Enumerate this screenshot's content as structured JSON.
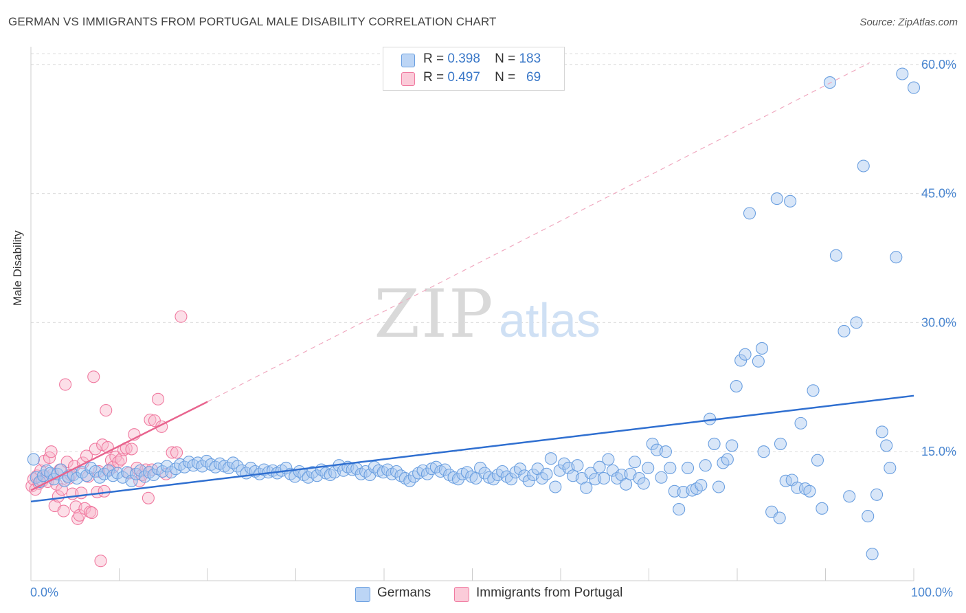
{
  "title": "GERMAN VS IMMIGRANTS FROM PORTUGAL MALE DISABILITY CORRELATION CHART",
  "source": "Source: ZipAtlas.com",
  "legend": {
    "rows": [
      {
        "r_label": "R =",
        "r_value": "0.398",
        "n_label": "N =",
        "n_value": "183",
        "color": "#a8c8f0"
      },
      {
        "r_label": "R =",
        "r_value": "0.497",
        "n_label": "N =",
        "n_value": "69",
        "color": "#f8b8cc"
      }
    ]
  },
  "bottom_legend": [
    {
      "label": "Germans",
      "color": "#a8c8f0"
    },
    {
      "label": "Immigrants from Portugal",
      "color": "#f8b8cc"
    }
  ],
  "x_axis": {
    "min_label": "0.0%",
    "max_label": "100.0%"
  },
  "watermark": {
    "part1": "ZIP",
    "part2": "atlas"
  },
  "chart_data": {
    "type": "scatter",
    "title": "GERMAN VS IMMIGRANTS FROM PORTUGAL MALE DISABILITY CORRELATION CHART",
    "xlabel": "",
    "ylabel": "Male Disability",
    "xlim": [
      0,
      100
    ],
    "ylim": [
      0,
      61.5
    ],
    "y_ticks": [
      15,
      30,
      45,
      60
    ],
    "y_tick_labels": [
      "15.0%",
      "30.0%",
      "45.0%",
      "60.0%"
    ],
    "x_tick_labels": [
      "0.0%",
      "100.0%"
    ],
    "grid": "horizontal dashed",
    "legend_position": "top-center",
    "series": [
      {
        "name": "Germans",
        "color": "#6a9fe0",
        "r": 0.398,
        "n": 183,
        "trend": {
          "x": [
            0,
            100
          ],
          "y": [
            9.2,
            21.5
          ],
          "style": "solid",
          "color": "#2f6fd0"
        },
        "points": [
          [
            0.3,
            14.1
          ],
          [
            0.6,
            12.0
          ],
          [
            1.0,
            11.5
          ],
          [
            1.4,
            12.2
          ],
          [
            1.8,
            12.8
          ],
          [
            2.2,
            12.5
          ],
          [
            2.6,
            11.8
          ],
          [
            3.0,
            12.4
          ],
          [
            3.4,
            12.9
          ],
          [
            3.8,
            11.6
          ],
          [
            4.2,
            12.1
          ],
          [
            4.8,
            12.3
          ],
          [
            5.2,
            11.9
          ],
          [
            5.8,
            12.6
          ],
          [
            6.3,
            12.2
          ],
          [
            6.8,
            13.1
          ],
          [
            7.3,
            12.7
          ],
          [
            7.8,
            12.0
          ],
          [
            8.3,
            12.4
          ],
          [
            8.8,
            12.8
          ],
          [
            9.3,
            12.2
          ],
          [
            9.8,
            12.5
          ],
          [
            10.4,
            12.0
          ],
          [
            10.9,
            12.6
          ],
          [
            11.4,
            11.6
          ],
          [
            11.9,
            12.4
          ],
          [
            12.4,
            12.8
          ],
          [
            12.9,
            12.1
          ],
          [
            13.4,
            12.6
          ],
          [
            13.9,
            12.3
          ],
          [
            14.4,
            13.0
          ],
          [
            14.9,
            12.7
          ],
          [
            15.4,
            13.3
          ],
          [
            15.9,
            12.6
          ],
          [
            16.4,
            13.0
          ],
          [
            16.9,
            13.5
          ],
          [
            17.4,
            13.2
          ],
          [
            17.9,
            13.8
          ],
          [
            18.4,
            13.4
          ],
          [
            18.9,
            13.7
          ],
          [
            19.4,
            13.3
          ],
          [
            19.9,
            13.9
          ],
          [
            20.4,
            13.5
          ],
          [
            20.9,
            13.2
          ],
          [
            21.4,
            13.6
          ],
          [
            21.9,
            13.3
          ],
          [
            22.4,
            13.1
          ],
          [
            22.9,
            13.7
          ],
          [
            23.4,
            13.3
          ],
          [
            23.9,
            12.8
          ],
          [
            24.4,
            12.5
          ],
          [
            24.9,
            13.1
          ],
          [
            25.4,
            12.7
          ],
          [
            25.9,
            12.4
          ],
          [
            26.4,
            12.9
          ],
          [
            26.9,
            12.6
          ],
          [
            27.4,
            12.8
          ],
          [
            27.9,
            12.5
          ],
          [
            28.4,
            12.8
          ],
          [
            28.9,
            13.1
          ],
          [
            29.4,
            12.4
          ],
          [
            29.9,
            12.1
          ],
          [
            30.4,
            12.7
          ],
          [
            30.9,
            12.3
          ],
          [
            31.4,
            12.0
          ],
          [
            31.9,
            12.6
          ],
          [
            32.4,
            12.2
          ],
          [
            32.9,
            12.9
          ],
          [
            33.4,
            12.5
          ],
          [
            33.9,
            12.3
          ],
          [
            34.4,
            12.6
          ],
          [
            34.9,
            13.4
          ],
          [
            35.4,
            12.8
          ],
          [
            35.9,
            13.2
          ],
          [
            36.4,
            12.9
          ],
          [
            36.9,
            13.0
          ],
          [
            37.4,
            12.4
          ],
          [
            37.9,
            12.7
          ],
          [
            38.4,
            12.3
          ],
          [
            38.9,
            13.2
          ],
          [
            39.4,
            12.8
          ],
          [
            39.9,
            12.6
          ],
          [
            40.4,
            12.9
          ],
          [
            40.9,
            12.4
          ],
          [
            41.4,
            12.7
          ],
          [
            41.9,
            12.2
          ],
          [
            42.4,
            11.9
          ],
          [
            42.9,
            11.6
          ],
          [
            43.4,
            12.1
          ],
          [
            43.9,
            12.5
          ],
          [
            44.4,
            12.8
          ],
          [
            44.9,
            12.4
          ],
          [
            45.4,
            13.0
          ],
          [
            45.9,
            13.2
          ],
          [
            46.4,
            12.7
          ],
          [
            46.9,
            12.9
          ],
          [
            47.4,
            12.3
          ],
          [
            47.9,
            12.0
          ],
          [
            48.4,
            11.8
          ],
          [
            48.9,
            12.4
          ],
          [
            49.4,
            12.6
          ],
          [
            49.9,
            12.1
          ],
          [
            50.4,
            11.9
          ],
          [
            50.9,
            13.1
          ],
          [
            51.4,
            12.5
          ],
          [
            51.9,
            12.0
          ],
          [
            52.4,
            11.8
          ],
          [
            52.9,
            12.3
          ],
          [
            53.4,
            12.7
          ],
          [
            53.9,
            12.1
          ],
          [
            54.4,
            11.8
          ],
          [
            54.9,
            12.6
          ],
          [
            55.4,
            13.0
          ],
          [
            55.9,
            12.2
          ],
          [
            56.4,
            11.6
          ],
          [
            56.9,
            12.3
          ],
          [
            57.4,
            13.0
          ],
          [
            57.9,
            11.9
          ],
          [
            58.4,
            12.4
          ],
          [
            58.9,
            14.2
          ],
          [
            59.4,
            10.9
          ],
          [
            59.9,
            12.8
          ],
          [
            60.4,
            13.6
          ],
          [
            60.9,
            13.1
          ],
          [
            61.4,
            12.2
          ],
          [
            61.9,
            13.4
          ],
          [
            62.4,
            11.9
          ],
          [
            62.9,
            10.8
          ],
          [
            63.4,
            12.5
          ],
          [
            63.9,
            11.8
          ],
          [
            64.4,
            13.2
          ],
          [
            64.9,
            11.9
          ],
          [
            65.4,
            14.1
          ],
          [
            65.9,
            12.8
          ],
          [
            66.4,
            11.9
          ],
          [
            66.9,
            12.3
          ],
          [
            67.4,
            11.2
          ],
          [
            67.9,
            12.4
          ],
          [
            68.4,
            13.8
          ],
          [
            68.9,
            11.9
          ],
          [
            69.4,
            11.3
          ],
          [
            69.9,
            13.1
          ],
          [
            70.4,
            15.9
          ],
          [
            70.9,
            15.2
          ],
          [
            71.4,
            12.0
          ],
          [
            71.9,
            15.0
          ],
          [
            72.4,
            13.1
          ],
          [
            72.9,
            10.4
          ],
          [
            73.4,
            8.3
          ],
          [
            73.9,
            10.3
          ],
          [
            74.4,
            13.1
          ],
          [
            74.9,
            10.5
          ],
          [
            75.4,
            10.7
          ],
          [
            75.9,
            11.1
          ],
          [
            76.4,
            13.4
          ],
          [
            76.9,
            18.8
          ],
          [
            77.4,
            15.9
          ],
          [
            77.9,
            10.9
          ],
          [
            78.4,
            13.7
          ],
          [
            78.9,
            14.1
          ],
          [
            79.4,
            15.7
          ],
          [
            79.9,
            22.6
          ],
          [
            80.4,
            25.6
          ],
          [
            80.9,
            26.3
          ],
          [
            81.4,
            42.7
          ],
          [
            82.4,
            25.5
          ],
          [
            82.8,
            27.0
          ],
          [
            83.0,
            15.0
          ],
          [
            83.9,
            8.0
          ],
          [
            84.5,
            44.4
          ],
          [
            84.8,
            7.3
          ],
          [
            84.9,
            15.9
          ],
          [
            85.5,
            11.6
          ],
          [
            86.0,
            44.1
          ],
          [
            86.2,
            11.7
          ],
          [
            86.8,
            10.8
          ],
          [
            87.2,
            18.3
          ],
          [
            87.7,
            10.7
          ],
          [
            88.2,
            10.4
          ],
          [
            88.6,
            22.1
          ],
          [
            89.1,
            14.0
          ],
          [
            89.6,
            8.4
          ],
          [
            90.5,
            57.9
          ],
          [
            91.2,
            37.8
          ],
          [
            92.1,
            29.0
          ],
          [
            92.7,
            9.8
          ],
          [
            93.5,
            30.0
          ],
          [
            94.3,
            48.2
          ],
          [
            94.8,
            7.5
          ],
          [
            95.3,
            3.1
          ],
          [
            95.8,
            10.0
          ],
          [
            96.4,
            17.3
          ],
          [
            96.9,
            15.7
          ],
          [
            97.3,
            13.1
          ],
          [
            98.0,
            37.6
          ],
          [
            98.7,
            58.9
          ],
          [
            100.0,
            57.3
          ]
        ]
      },
      {
        "name": "Immigrants from Portugal",
        "color": "#f07aa0",
        "r": 0.497,
        "n": 69,
        "trend": {
          "x": [
            0,
            20
          ],
          "y": [
            10.5,
            20.8
          ],
          "style": "solid",
          "color": "#e8648e"
        },
        "trend_extended": {
          "x": [
            20,
            95
          ],
          "y": [
            20.8,
            60.2
          ],
          "style": "dashed",
          "color": "#f0a8bf"
        },
        "points": [
          [
            0.1,
            11.0
          ],
          [
            0.3,
            11.8
          ],
          [
            0.5,
            10.6
          ],
          [
            0.7,
            12.2
          ],
          [
            0.9,
            11.3
          ],
          [
            1.1,
            12.8
          ],
          [
            1.3,
            11.6
          ],
          [
            1.5,
            13.9
          ],
          [
            1.7,
            12.1
          ],
          [
            1.9,
            11.5
          ],
          [
            2.1,
            14.3
          ],
          [
            2.3,
            15.0
          ],
          [
            2.5,
            12.4
          ],
          [
            2.7,
            8.7
          ],
          [
            2.9,
            11.2
          ],
          [
            3.1,
            9.8
          ],
          [
            3.3,
            12.9
          ],
          [
            3.5,
            10.6
          ],
          [
            3.7,
            8.1
          ],
          [
            3.9,
            22.8
          ],
          [
            4.1,
            13.8
          ],
          [
            4.3,
            11.9
          ],
          [
            4.5,
            12.3
          ],
          [
            4.7,
            10.1
          ],
          [
            4.9,
            13.3
          ],
          [
            5.1,
            8.6
          ],
          [
            5.3,
            7.2
          ],
          [
            5.5,
            7.6
          ],
          [
            5.7,
            10.2
          ],
          [
            5.9,
            13.7
          ],
          [
            6.1,
            8.4
          ],
          [
            6.3,
            14.5
          ],
          [
            6.5,
            12.1
          ],
          [
            6.7,
            8.0
          ],
          [
            6.9,
            7.9
          ],
          [
            7.1,
            23.7
          ],
          [
            7.3,
            15.3
          ],
          [
            7.5,
            10.3
          ],
          [
            7.7,
            12.7
          ],
          [
            7.9,
            2.3
          ],
          [
            8.1,
            15.8
          ],
          [
            8.3,
            10.4
          ],
          [
            8.5,
            19.8
          ],
          [
            8.7,
            15.5
          ],
          [
            8.9,
            12.9
          ],
          [
            9.1,
            14.0
          ],
          [
            9.3,
            13.2
          ],
          [
            9.6,
            14.4
          ],
          [
            9.9,
            13.8
          ],
          [
            10.2,
            14.1
          ],
          [
            10.5,
            15.2
          ],
          [
            10.8,
            15.4
          ],
          [
            11.1,
            12.5
          ],
          [
            11.4,
            15.3
          ],
          [
            11.7,
            17.0
          ],
          [
            12.0,
            13.1
          ],
          [
            12.3,
            11.6
          ],
          [
            12.6,
            12.3
          ],
          [
            13.0,
            12.9
          ],
          [
            13.3,
            9.6
          ],
          [
            13.5,
            18.7
          ],
          [
            13.7,
            12.9
          ],
          [
            14.0,
            18.6
          ],
          [
            14.4,
            21.1
          ],
          [
            14.8,
            17.9
          ],
          [
            15.3,
            12.4
          ],
          [
            16.0,
            14.9
          ],
          [
            16.5,
            14.9
          ],
          [
            17.0,
            30.7
          ]
        ]
      }
    ]
  }
}
